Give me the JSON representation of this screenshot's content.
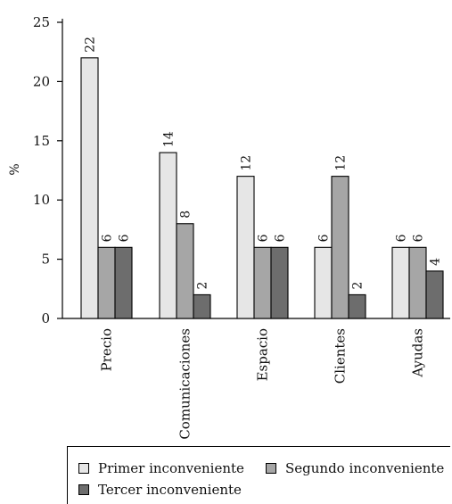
{
  "chart_data": {
    "type": "bar",
    "ylabel": "%",
    "ylim": [
      0,
      25
    ],
    "yticks": [
      0,
      5,
      10,
      15,
      20,
      25
    ],
    "categories": [
      "Precio",
      "Comunicaciones",
      "Espacio",
      "Clientes",
      "Ayudas"
    ],
    "series": [
      {
        "name": "Primer inconveniente",
        "color": "#e6e6e6",
        "values": [
          22,
          14,
          12,
          6,
          6
        ]
      },
      {
        "name": "Segundo inconveniente",
        "color": "#a6a6a6",
        "values": [
          6,
          8,
          6,
          12,
          6
        ]
      },
      {
        "name": "Tercer inconveniente",
        "color": "#6d6d6d",
        "values": [
          6,
          2,
          6,
          2,
          4
        ]
      }
    ],
    "grid": false,
    "legend_position": "bottom"
  }
}
